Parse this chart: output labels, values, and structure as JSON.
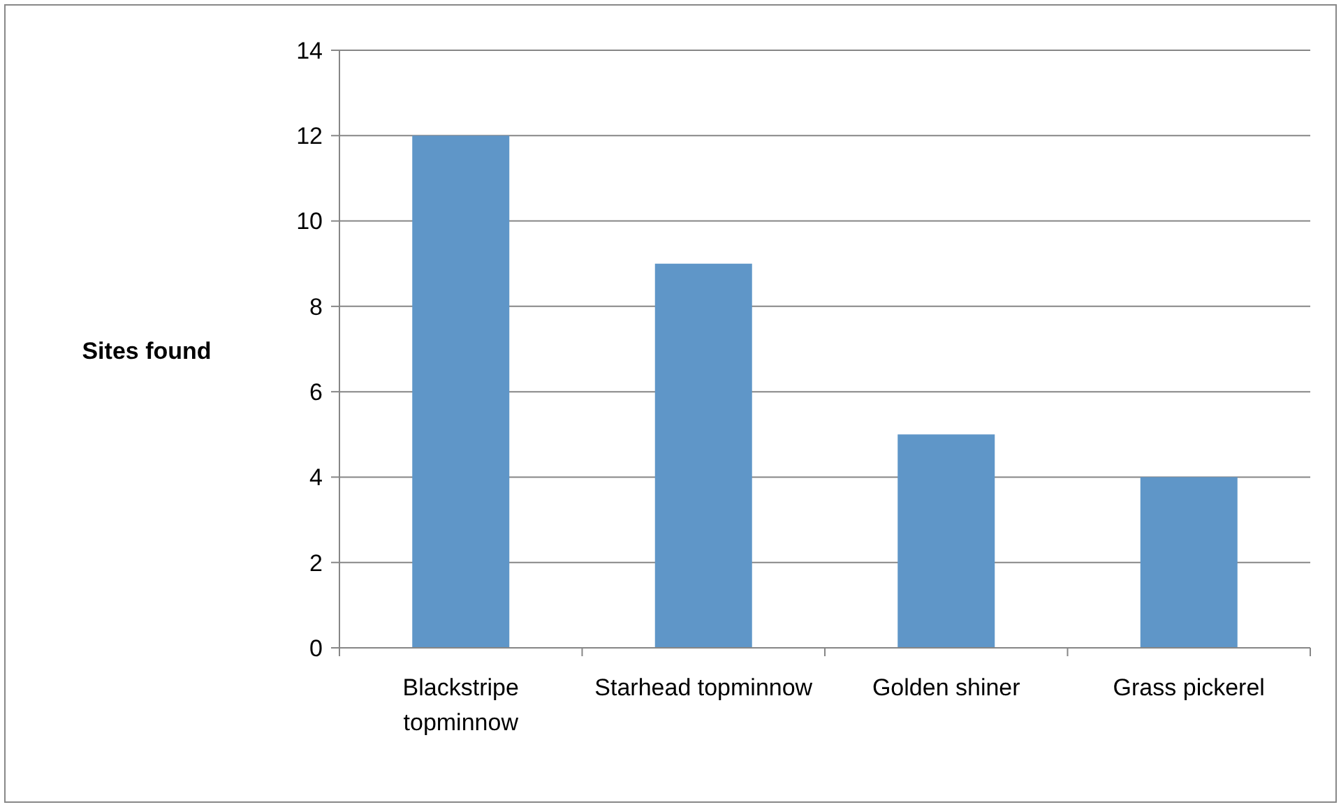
{
  "chart_data": {
    "type": "bar",
    "ylabel": "Sites found",
    "categories": [
      "Blackstripe topminnow",
      "Starhead topminnow",
      "Golden shiner",
      "Grass pickerel"
    ],
    "values": [
      12,
      9,
      5,
      4
    ],
    "color": "#5f96c8",
    "ylim": [
      0,
      14
    ],
    "yticks": [
      0,
      2,
      4,
      6,
      8,
      10,
      12,
      14
    ],
    "grid": "y"
  }
}
